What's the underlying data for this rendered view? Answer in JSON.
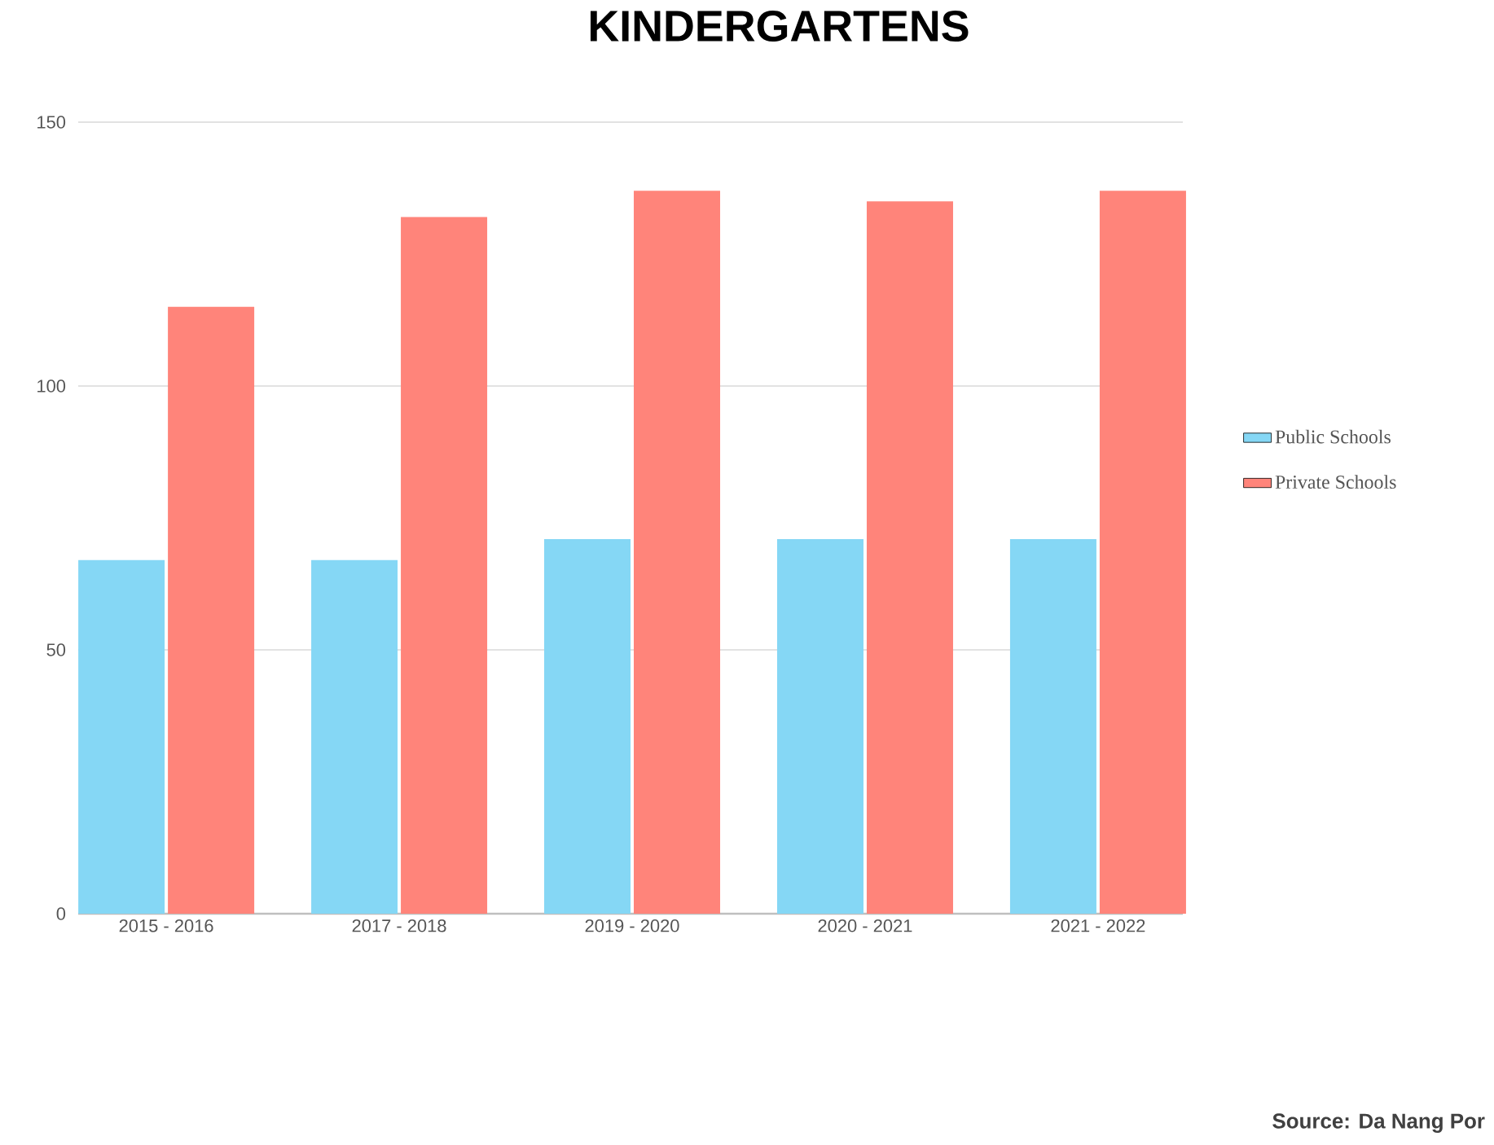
{
  "chart_data": {
    "type": "bar",
    "title": "KINDERGARTENS",
    "categories": [
      "2015 - 2016",
      "2017 - 2018",
      "2019 - 2020",
      "2020 - 2021",
      "2021 - 2022"
    ],
    "series": [
      {
        "name": "Public Schools",
        "color": "#85d7f5",
        "values": [
          67,
          67,
          71,
          71,
          71
        ]
      },
      {
        "name": "Private Schools",
        "color": "#ff847a",
        "values": [
          115,
          132,
          137,
          135,
          137
        ]
      }
    ],
    "ylim": [
      0,
      150
    ],
    "yticks": [
      0,
      50,
      100,
      150
    ],
    "grid": "y",
    "legend": "right",
    "annotations": [
      "Source: Da Nang Por"
    ]
  }
}
